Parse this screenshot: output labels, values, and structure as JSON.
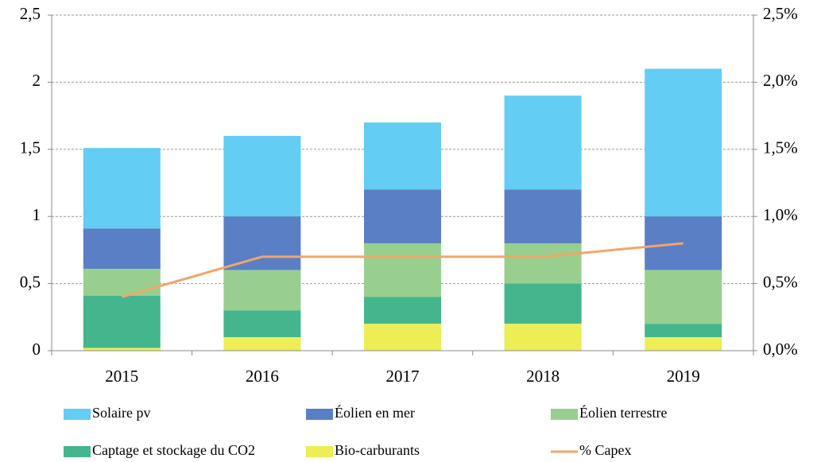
{
  "chart_data": {
    "type": "bar",
    "stacked": true,
    "categories": [
      "2015",
      "2016",
      "2017",
      "2018",
      "2019"
    ],
    "series": [
      {
        "name": "Solaire pv",
        "color": "#63cdf3",
        "values": [
          0.6,
          0.6,
          0.5,
          0.7,
          1.1
        ]
      },
      {
        "name": "Éolien en mer",
        "color": "#5a7fc4",
        "values": [
          0.3,
          0.4,
          0.4,
          0.4,
          0.4
        ]
      },
      {
        "name": "Éolien terrestre",
        "color": "#98cf8f",
        "values": [
          0.2,
          0.3,
          0.4,
          0.3,
          0.4
        ]
      },
      {
        "name": "Captage et stockage du CO2",
        "color": "#45b58e",
        "values": [
          0.39,
          0.2,
          0.2,
          0.3,
          0.1
        ]
      },
      {
        "name": "Bio-carburants",
        "color": "#eded55",
        "values": [
          0.02,
          0.1,
          0.2,
          0.2,
          0.1
        ]
      },
      {
        "name": "% Capex",
        "color": "#f2a56a",
        "type": "line",
        "axis": "y2",
        "values": [
          0.4,
          0.7,
          0.7,
          0.7,
          0.8
        ]
      }
    ],
    "ylim": [
      0,
      2.5
    ],
    "yticks": [
      0,
      {
        "value": 0.5,
        "label": "0,5"
      },
      1,
      {
        "value": 1.5,
        "label": "1,5"
      },
      2,
      {
        "value": 2.5,
        "label": "2,5"
      }
    ],
    "y2lim": [
      0,
      2.5
    ],
    "y2ticks": [
      {
        "value": 0,
        "label": "0,0%"
      },
      {
        "value": 0.5,
        "label": "0,5%"
      },
      {
        "value": 1,
        "label": "1,0%"
      },
      {
        "value": 1.5,
        "label": "1,5%"
      },
      {
        "value": 2,
        "label": "2,0%"
      },
      {
        "value": 2.5,
        "label": "2,5%"
      }
    ],
    "grid": true,
    "legend": "bottom"
  }
}
